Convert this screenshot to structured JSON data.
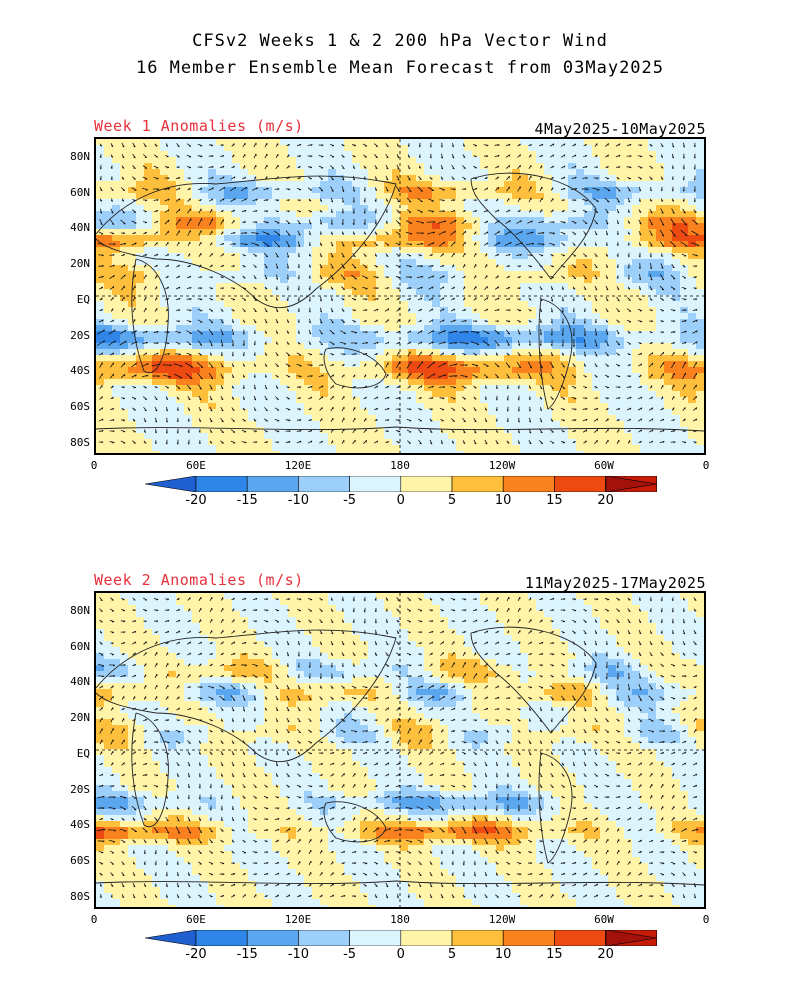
{
  "header": {
    "title_line1": "CFSv2 Weeks 1 & 2 200 hPa Vector Wind",
    "title_line2": "16 Member Ensemble Mean Forecast from 03May2025"
  },
  "panels": [
    {
      "label": "Week 1 Anomalies (m/s)",
      "dates": "4May2025-10May2025"
    },
    {
      "label": "Week 2 Anomalies (m/s)",
      "dates": "11May2025-17May2025"
    }
  ],
  "map": {
    "lat_ticks": [
      "80N",
      "60N",
      "40N",
      "20N",
      "EQ",
      "20S",
      "40S",
      "60S",
      "80S"
    ],
    "lon_ticks": [
      "0",
      "60E",
      "120E",
      "180",
      "120W",
      "60W",
      "0"
    ]
  },
  "colorbar": {
    "labels": [
      "-20",
      "-15",
      "-10",
      "-5",
      "0",
      "5",
      "10",
      "15",
      "20"
    ],
    "colors": [
      "#1f5fcf",
      "#2f86e8",
      "#5aa7f0",
      "#9cd0fa",
      "#dcf4fe",
      "#fff4a8",
      "#fdbf3c",
      "#f9821e",
      "#ed4a12",
      "#c51c0a",
      "#a3120a"
    ]
  }
}
